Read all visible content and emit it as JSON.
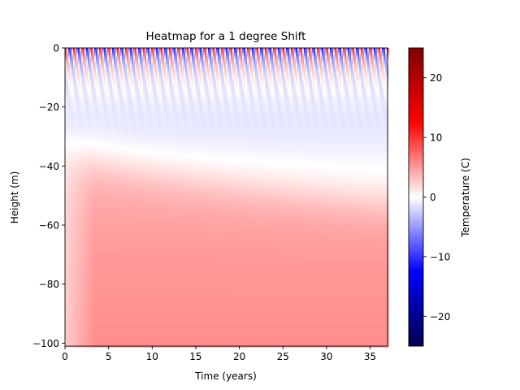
{
  "chart_data": {
    "type": "heatmap",
    "title": "Heatmap for a 1 degree Shift",
    "xlabel": "Time (years)",
    "ylabel": "Height (m)",
    "xlim": [
      0,
      37
    ],
    "ylim": [
      -101,
      0
    ],
    "xticks": [
      0,
      5,
      10,
      15,
      20,
      25,
      30,
      35
    ],
    "yticks": [
      0,
      -20,
      -40,
      -60,
      -80,
      -100
    ],
    "seasonal_cycles": 37,
    "surface_amplitude": 12,
    "deep_temperature": 6,
    "colorbar": {
      "label": "Temperature (C)",
      "range": [
        -25,
        25
      ],
      "ticks": [
        20,
        10,
        0,
        -10,
        -20
      ],
      "colormap": "seismic",
      "colors": [
        "#00004c",
        "#0000ff",
        "#ffffff",
        "#ff0000",
        "#7f0000"
      ]
    }
  }
}
